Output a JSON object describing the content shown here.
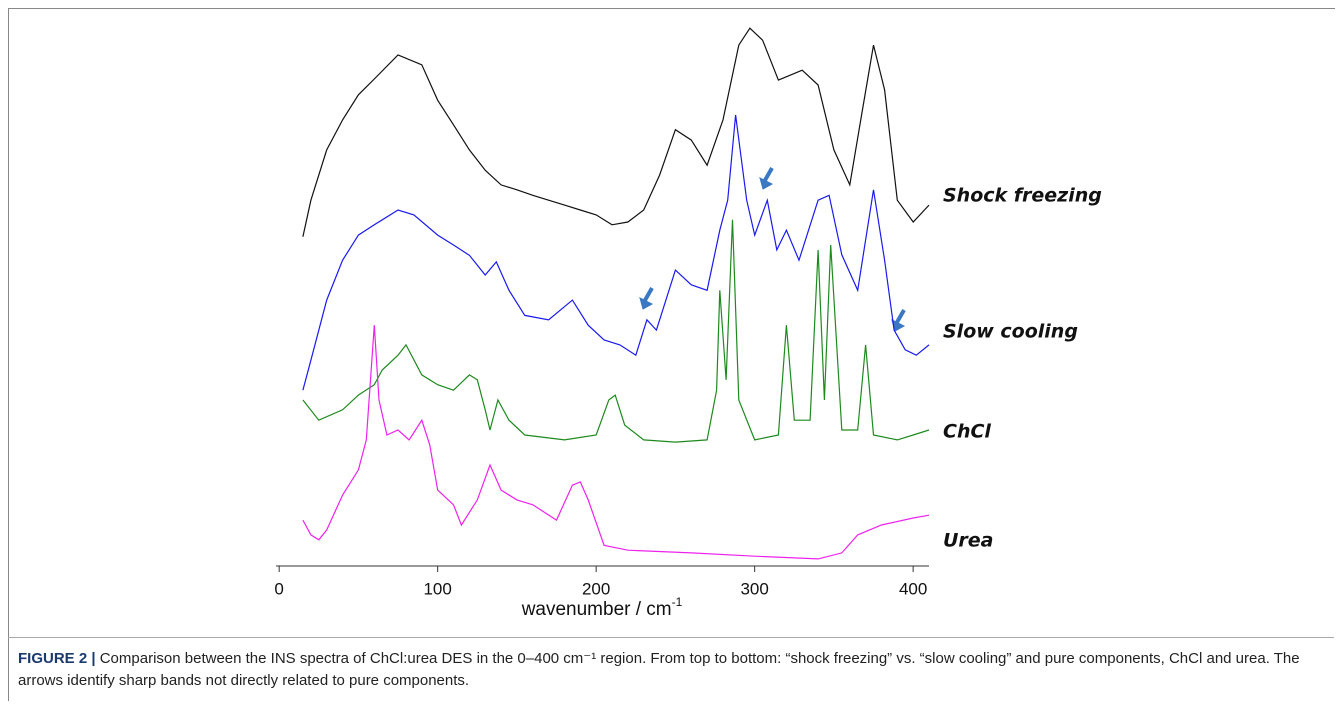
{
  "chart_data": {
    "type": "line",
    "xlabel": "wavenumber / cm",
    "xlabel_sup": "-1",
    "xlim": [
      -2,
      410
    ],
    "xticks": [
      0,
      100,
      200,
      300,
      400
    ],
    "ylim": [
      0,
      100
    ],
    "series": [
      {
        "name": "Shock freezing",
        "color": "#111111",
        "x": [
          15,
          20,
          30,
          40,
          50,
          60,
          75,
          90,
          100,
          110,
          120,
          130,
          140,
          150,
          160,
          170,
          180,
          190,
          200,
          210,
          220,
          230,
          240,
          250,
          260,
          270,
          280,
          290,
          297,
          305,
          315,
          330,
          340,
          350,
          360,
          368,
          375,
          382,
          390,
          400,
          410
        ],
        "values": [
          60.3,
          67.0,
          76.2,
          81.7,
          86.3,
          89.2,
          93.6,
          91.8,
          85.3,
          80.8,
          76.2,
          72.5,
          69.8,
          68.9,
          67.9,
          67.0,
          66.1,
          65.2,
          64.3,
          62.5,
          63.0,
          65.2,
          71.6,
          79.9,
          78.0,
          73.4,
          81.7,
          95.4,
          98.5,
          96.3,
          89.0,
          90.8,
          88.1,
          76.2,
          69.8,
          83.5,
          95.4,
          87.2,
          67.0,
          63.0,
          66.1
        ]
      },
      {
        "name": "Slow cooling",
        "color": "#1a1aee",
        "x": [
          15,
          20,
          30,
          40,
          50,
          60,
          75,
          85,
          100,
          110,
          120,
          130,
          137,
          145,
          155,
          170,
          185,
          195,
          205,
          215,
          225,
          232,
          238,
          250,
          260,
          270,
          278,
          283,
          288,
          295,
          300,
          308,
          314,
          320,
          328,
          340,
          347,
          355,
          365,
          375,
          382,
          388,
          395,
          402,
          410
        ],
        "values": [
          32.2,
          37.7,
          48.7,
          56.0,
          60.6,
          62.5,
          65.2,
          64.3,
          60.6,
          58.8,
          56.9,
          53.3,
          55.7,
          50.5,
          45.9,
          45.1,
          48.7,
          44.1,
          41.4,
          40.5,
          38.6,
          45.1,
          43.2,
          54.2,
          51.5,
          50.5,
          61.5,
          67.0,
          82.6,
          67.0,
          60.6,
          67.0,
          57.9,
          61.5,
          56.0,
          67.0,
          67.9,
          57.0,
          50.5,
          68.9,
          56.0,
          43.2,
          39.6,
          38.6,
          40.5
        ]
      },
      {
        "name": "ChCl",
        "color": "#1e8a1e",
        "x": [
          15,
          25,
          40,
          50,
          60,
          65,
          75,
          80,
          90,
          100,
          110,
          120,
          125,
          130,
          133,
          138,
          145,
          155,
          180,
          200,
          208,
          212,
          218,
          230,
          250,
          270,
          276,
          278,
          282,
          286,
          290,
          300,
          315,
          320,
          325,
          335,
          340,
          344,
          348,
          355,
          365,
          370,
          375,
          390,
          400,
          410
        ],
        "values": [
          30.4,
          26.7,
          28.6,
          31.3,
          33.2,
          35.9,
          38.6,
          40.5,
          35.0,
          33.2,
          32.2,
          35.0,
          34.1,
          28.6,
          24.9,
          30.4,
          26.7,
          24.0,
          23.1,
          24.0,
          30.4,
          31.3,
          25.8,
          23.1,
          22.7,
          23.1,
          32.2,
          50.5,
          34.1,
          63.4,
          30.4,
          23.1,
          24.0,
          44.1,
          26.7,
          26.7,
          57.9,
          30.4,
          58.8,
          24.9,
          24.9,
          40.5,
          24.0,
          23.1,
          24.0,
          24.9
        ]
      },
      {
        "name": "Urea",
        "color": "#ee22ee",
        "x": [
          15,
          20,
          25,
          30,
          40,
          50,
          55,
          60,
          63,
          68,
          75,
          82,
          90,
          95,
          100,
          110,
          115,
          125,
          133,
          140,
          150,
          160,
          175,
          185,
          190,
          195,
          205,
          220,
          260,
          300,
          340,
          355,
          365,
          380,
          400,
          410
        ],
        "values": [
          8.4,
          5.7,
          4.8,
          6.6,
          13.0,
          17.6,
          23.1,
          44.1,
          30.4,
          24.0,
          24.9,
          23.1,
          26.7,
          22.2,
          13.9,
          11.2,
          7.5,
          12.1,
          18.5,
          13.9,
          12.1,
          11.2,
          8.4,
          14.8,
          15.4,
          12.1,
          3.8,
          2.9,
          2.4,
          1.8,
          1.3,
          2.4,
          5.7,
          7.5,
          8.8,
          9.3
        ]
      }
    ]
  },
  "caption": {
    "label": "FIGURE 2 |",
    "text": "Comparison between the INS spectra of ChCl:urea DES in the 0–400 cm⁻¹ region. From top to bottom: “shock freezing” vs. “slow cooling” and pure components, ChCl and urea. The arrows identify sharp bands not directly related to pure components."
  }
}
